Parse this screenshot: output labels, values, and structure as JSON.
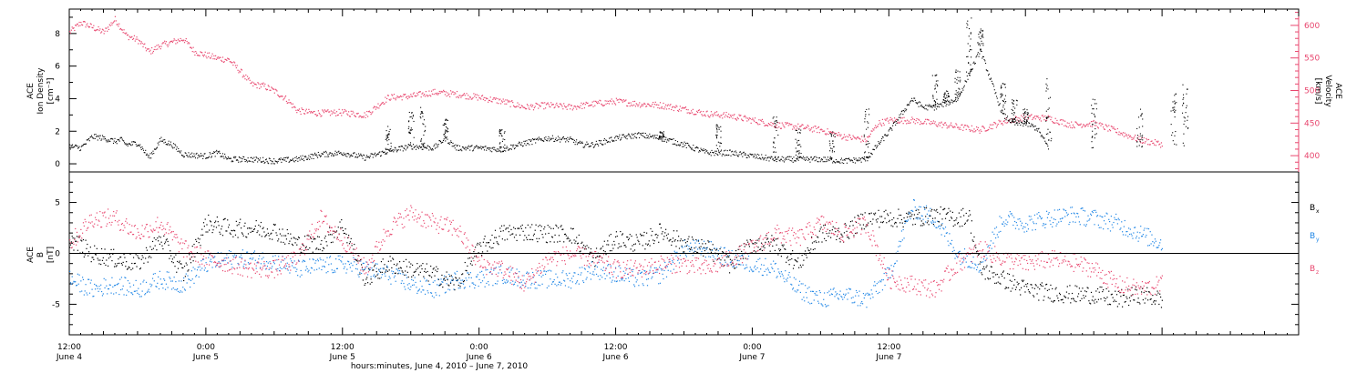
{
  "colors": {
    "black": "#000000",
    "pink": "#e8466e",
    "blue": "#1f86e6"
  },
  "chart_data": [
    {
      "type": "scatter",
      "panel": "top",
      "ylabel_lines": [
        "ACE",
        "Ion Density",
        "[cm⁻³]"
      ],
      "ylabel2_lines": [
        "ACE",
        "Velocity",
        "[km/s]"
      ],
      "ylim": [
        -0.5,
        9.5
      ],
      "ylim2": [
        375,
        625
      ],
      "yticks": [
        0,
        2,
        4,
        6,
        8
      ],
      "yticks2": [
        400,
        450,
        500,
        550,
        600
      ],
      "grid": false,
      "series": [
        {
          "key": "density",
          "axis": "left",
          "color": "#000000",
          "x": [
            0,
            1,
            2,
            3,
            4,
            4.5,
            5,
            6,
            7,
            8,
            9,
            10,
            12,
            13,
            14,
            16,
            18,
            20,
            22,
            24,
            26,
            28,
            30,
            32,
            33,
            34,
            36,
            38,
            40,
            42,
            44,
            45,
            46,
            48,
            50,
            52,
            54,
            56,
            58,
            60,
            62,
            64,
            66,
            68,
            70,
            71,
            72,
            73,
            74,
            75,
            76,
            78,
            80,
            82,
            83,
            84,
            85,
            86
          ],
          "y": [
            1.1,
            1.0,
            1.7,
            1.6,
            1.4,
            1.5,
            1.2,
            1.3,
            0.4,
            1.5,
            1.2,
            0.6,
            0.5,
            0.7,
            0.3,
            0.3,
            0.2,
            0.3,
            0.6,
            0.7,
            0.4,
            0.8,
            1.1,
            1.0,
            1.6,
            1.0,
            1.0,
            0.9,
            1.3,
            1.6,
            1.5,
            1.2,
            1.2,
            1.6,
            1.8,
            1.6,
            1.2,
            0.7,
            0.7,
            0.5,
            0.3,
            0.3,
            0.3,
            0.2,
            0.3,
            1.2,
            2.0,
            3.0,
            4.0,
            3.5,
            3.5,
            4.0,
            7.0,
            3.0,
            2.5,
            2.5,
            2.2,
            1.0
          ],
          "spikes": [
            [
              28,
              2.5
            ],
            [
              30,
              3.2
            ],
            [
              31,
              3.8
            ],
            [
              33,
              2.8
            ],
            [
              38,
              2.2
            ],
            [
              52,
              2.0
            ],
            [
              57,
              2.5
            ],
            [
              62,
              3.0
            ],
            [
              64,
              2.3
            ],
            [
              67,
              2.0
            ],
            [
              70,
              3.5
            ],
            [
              76,
              5.5
            ],
            [
              77,
              4.5
            ],
            [
              78,
              5.8
            ],
            [
              79,
              9.0
            ],
            [
              80,
              8.5
            ],
            [
              82,
              5.0
            ],
            [
              83,
              4.0
            ],
            [
              84,
              3.5
            ],
            [
              86,
              5.5
            ],
            [
              90,
              4.0
            ],
            [
              94,
              3.5
            ],
            [
              97,
              4.5
            ],
            [
              98,
              5.0
            ]
          ]
        },
        {
          "key": "velocity",
          "axis": "right",
          "color": "#e8466e",
          "x": [
            0,
            1,
            2,
            3,
            4,
            5,
            6,
            7,
            8,
            9,
            10,
            11,
            12,
            13,
            14,
            15,
            16,
            17,
            18,
            19,
            20,
            21,
            22,
            24,
            26,
            28,
            30,
            32,
            34,
            36,
            38,
            40,
            42,
            44,
            46,
            48,
            50,
            52,
            54,
            56,
            58,
            60,
            62,
            64,
            66,
            68,
            70,
            71,
            72,
            74,
            76,
            78,
            80,
            82,
            84,
            86,
            88,
            90,
            92,
            94,
            96
          ],
          "y": [
            590,
            605,
            598,
            590,
            610,
            585,
            578,
            560,
            570,
            575,
            580,
            560,
            555,
            550,
            548,
            530,
            510,
            508,
            500,
            488,
            470,
            467,
            466,
            467,
            463,
            490,
            492,
            498,
            495,
            490,
            484,
            475,
            478,
            475,
            480,
            484,
            480,
            478,
            472,
            465,
            462,
            455,
            448,
            445,
            440,
            430,
            425,
            450,
            455,
            455,
            450,
            445,
            440,
            453,
            460,
            458,
            448,
            450,
            438,
            425,
            418
          ]
        }
      ]
    },
    {
      "type": "scatter",
      "panel": "bottom",
      "ylabel_lines": [
        "ACE",
        "B",
        "[nT]"
      ],
      "ylim": [
        -8,
        8
      ],
      "yticks": [
        -5,
        0,
        5
      ],
      "grid": false,
      "legend": [
        "Bx",
        "By",
        "Bz"
      ],
      "series": [
        {
          "name": "Bx",
          "color": "#000000",
          "x": [
            0,
            2,
            4,
            6,
            8,
            10,
            12,
            14,
            16,
            18,
            20,
            22,
            24,
            26,
            28,
            30,
            32,
            34,
            36,
            38,
            40,
            42,
            44,
            46,
            48,
            50,
            52,
            54,
            56,
            58,
            60,
            62,
            64,
            66,
            68,
            70,
            72,
            74,
            76,
            78,
            79,
            80,
            82,
            84,
            86,
            88,
            90,
            92,
            94,
            96
          ],
          "y": [
            1.5,
            0.0,
            -0.5,
            -1.0,
            1.5,
            -2.0,
            3.0,
            2.5,
            2.5,
            2.3,
            1.0,
            1.0,
            2.8,
            -2.5,
            -1.0,
            -1.5,
            -2.0,
            -3.0,
            0.5,
            2.0,
            2.2,
            2.0,
            2.0,
            -0.5,
            1.5,
            1.0,
            2.2,
            1.0,
            0.5,
            -1.0,
            1.0,
            1.0,
            -1.0,
            2.0,
            2.0,
            3.5,
            3.5,
            3.5,
            3.8,
            3.5,
            3.8,
            -1.5,
            -2.5,
            -3.5,
            -3.8,
            -4.0,
            -4.0,
            -4.5,
            -4.0,
            -4.5
          ]
        },
        {
          "name": "By",
          "color": "#1f86e6",
          "x": [
            0,
            2,
            4,
            6,
            8,
            10,
            12,
            14,
            16,
            18,
            20,
            22,
            24,
            26,
            28,
            30,
            32,
            34,
            36,
            38,
            40,
            42,
            44,
            46,
            48,
            50,
            52,
            54,
            56,
            58,
            60,
            62,
            64,
            66,
            68,
            70,
            72,
            74,
            76,
            78,
            80,
            82,
            84,
            86,
            88,
            90,
            92,
            94,
            96
          ],
          "y": [
            -2.5,
            -3.5,
            -3.0,
            -3.5,
            -2.5,
            -3.0,
            -1.0,
            -0.5,
            -0.5,
            -0.7,
            -1.5,
            -1.2,
            -1.0,
            -1.5,
            -2.0,
            -3.0,
            -3.5,
            -2.5,
            -2.5,
            -2.0,
            -2.5,
            -2.5,
            -2.5,
            -1.5,
            -2.0,
            -2.5,
            -2.0,
            0.5,
            0.5,
            -0.5,
            -1.0,
            -1.5,
            -3.5,
            -4.5,
            -4.0,
            -4.5,
            -2.0,
            4.5,
            3.5,
            0.0,
            -1.0,
            3.5,
            3.0,
            3.5,
            3.8,
            3.5,
            3.0,
            2.0,
            1.0
          ]
        },
        {
          "name": "Bz",
          "color": "#e8466e",
          "x": [
            0,
            2,
            4,
            6,
            8,
            10,
            12,
            14,
            16,
            18,
            20,
            22,
            24,
            26,
            28,
            30,
            32,
            34,
            36,
            38,
            40,
            42,
            44,
            46,
            48,
            50,
            52,
            54,
            56,
            58,
            60,
            62,
            64,
            66,
            68,
            70,
            72,
            74,
            76,
            78,
            80,
            82,
            84,
            86,
            88,
            90,
            92,
            94,
            96
          ],
          "y": [
            1.0,
            3.5,
            3.5,
            2.0,
            3.0,
            0.5,
            -0.5,
            -1.0,
            -1.5,
            -1.5,
            -0.5,
            3.5,
            1.5,
            -1.5,
            2.5,
            4.0,
            3.0,
            2.5,
            -1.0,
            -1.5,
            -3.0,
            -0.5,
            0.0,
            -0.5,
            -1.5,
            -1.5,
            -1.0,
            -1.0,
            -1.5,
            -0.5,
            0.5,
            2.0,
            1.5,
            3.0,
            2.0,
            3.0,
            -2.5,
            -3.0,
            -3.5,
            -1.0,
            0.5,
            -0.5,
            -1.0,
            -0.5,
            -0.8,
            -1.5,
            -3.0,
            -3.5,
            -3.0
          ]
        }
      ]
    }
  ],
  "x_axis": {
    "range_hours": [
      0,
      108
    ],
    "ticks": [
      {
        "hour": 0,
        "time": "12:00",
        "day": "June 4"
      },
      {
        "hour": 12,
        "time": "0:00",
        "day": "June 5"
      },
      {
        "hour": 24,
        "time": "12:00",
        "day": "June 5"
      },
      {
        "hour": 36,
        "time": "0:00",
        "day": "June 6"
      },
      {
        "hour": 48,
        "time": "12:00",
        "day": "June 6"
      },
      {
        "hour": 60,
        "time": "0:00",
        "day": "June 7"
      },
      {
        "hour": 72,
        "time": "12:00",
        "day": "June 7"
      }
    ],
    "xlabel": "hours:minutes, June  4, 2010 – June  7, 2010"
  },
  "legend_labels": {
    "bx_main": "B",
    "bx_sub": "x",
    "by_main": "B",
    "by_sub": "y",
    "bz_main": "B",
    "bz_sub": "z"
  }
}
